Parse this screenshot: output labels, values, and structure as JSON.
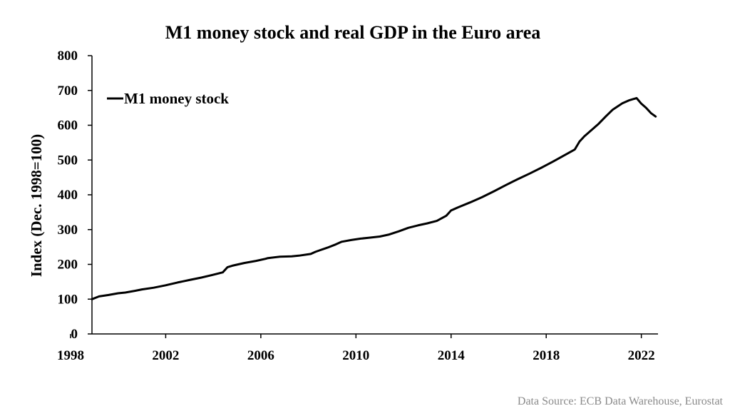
{
  "chart_data": {
    "type": "line",
    "title": "M1 money stock and real GDP in the Euro area",
    "ylabel": "Index (Dec. 1998=100)",
    "xlabel": "",
    "xlim": [
      1998.9,
      2022.7
    ],
    "ylim": [
      0,
      800
    ],
    "x_ticks": [
      1998,
      2002,
      2006,
      2010,
      2014,
      2018,
      2022
    ],
    "y_ticks": [
      0,
      100,
      200,
      300,
      400,
      500,
      600,
      700,
      800
    ],
    "grid": false,
    "legend_position": "top-left",
    "source": "Data Source: ECB Data Warehouse, Eurostat",
    "series": [
      {
        "name": "M1 money stock",
        "color": "#000000",
        "x": [
          1998.9,
          1999.2,
          1999.6,
          2000.0,
          2000.3,
          2000.7,
          2001.0,
          2001.5,
          2002.0,
          2002.5,
          2003.0,
          2003.5,
          2004.0,
          2004.4,
          2004.6,
          2004.8,
          2005.3,
          2005.8,
          2006.2,
          2006.3,
          2006.8,
          2007.3,
          2007.6,
          2008.1,
          2008.3,
          2008.5,
          2008.8,
          2009.1,
          2009.4,
          2009.8,
          2010.2,
          2010.6,
          2011.0,
          2011.4,
          2011.8,
          2012.2,
          2012.6,
          2013.0,
          2013.4,
          2013.8,
          2014.0,
          2014.3,
          2014.8,
          2015.3,
          2015.8,
          2016.3,
          2016.8,
          2017.3,
          2017.8,
          2018.3,
          2018.8,
          2019.2,
          2019.4,
          2019.6,
          2019.8,
          2020.2,
          2020.5,
          2020.8,
          2021.2,
          2021.5,
          2021.8,
          2022.0,
          2022.2,
          2022.4,
          2022.6
        ],
        "values": [
          100,
          108,
          112,
          117,
          119,
          124,
          128,
          133,
          140,
          148,
          155,
          162,
          170,
          177,
          192,
          196,
          204,
          210,
          216,
          218,
          222,
          223,
          225,
          230,
          236,
          241,
          248,
          256,
          265,
          270,
          274,
          277,
          280,
          286,
          295,
          305,
          312,
          318,
          325,
          340,
          355,
          364,
          378,
          393,
          410,
          428,
          445,
          461,
          478,
          496,
          515,
          530,
          553,
          568,
          580,
          604,
          625,
          645,
          663,
          672,
          678,
          662,
          650,
          635,
          625
        ]
      }
    ]
  }
}
